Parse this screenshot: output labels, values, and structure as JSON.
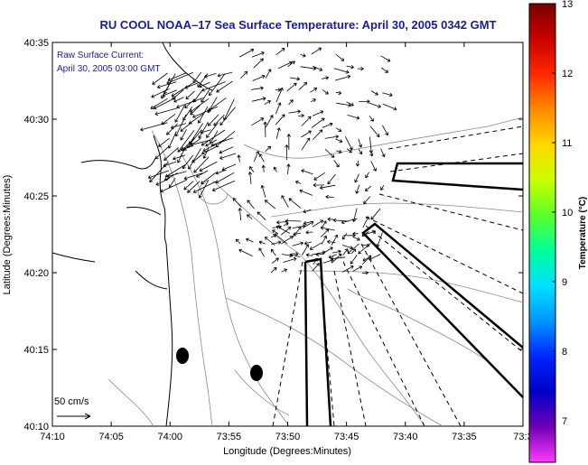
{
  "title": "RU COOL  NOAA–17  Sea Surface Temperature:  April 30, 2005 0342 GMT",
  "annotation_line1": "Raw Surface Current:",
  "annotation_line2": "April 30, 2005 03:00 GMT",
  "scale_label": "50 cm/s",
  "x_axis": {
    "label": "Longitude (Degrees:Minutes)",
    "ticks": [
      "74:10",
      "74:05",
      "74:00",
      "73:55",
      "73:50",
      "73:45",
      "73:40",
      "73:35",
      "73:3"
    ]
  },
  "y_axis": {
    "label": "Latitude (Degrees:Minutes)",
    "ticks": [
      "40:35",
      "40:30",
      "40:25",
      "40:20",
      "40:15",
      "40:10"
    ]
  },
  "colorbar": {
    "label": "Temperature (°C)",
    "ticks": [
      "13",
      "12",
      "11",
      "10",
      "9",
      "8",
      "7"
    ],
    "colors": [
      "#7a0000",
      "#c80000",
      "#ff2a00",
      "#ff8a00",
      "#ffd800",
      "#c8ff00",
      "#5aff2a",
      "#00ff9a",
      "#00e0ff",
      "#0096ff",
      "#0026ff",
      "#0000c8",
      "#7000b4",
      "#ff3cff"
    ]
  }
}
